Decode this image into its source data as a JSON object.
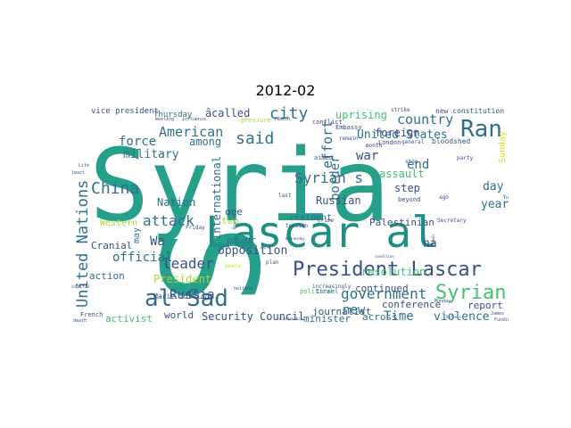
{
  "title": "2012-02",
  "palette": {
    "teal": "#26a08a",
    "teal_dark": "#1f8f84",
    "blue": "#2f6f8e",
    "navy": "#3a4f8a",
    "purple": "#482878",
    "green": "#43bf71",
    "lime": "#a5db36",
    "yellow": "#d8e219"
  },
  "words": [
    {
      "text": "Syria",
      "color": "teal"
    },
    {
      "text": "S",
      "color": "teal"
    },
    {
      "text": "Lascar al",
      "color": "teal_dark"
    },
    {
      "text": "President Lascar",
      "color": "navy"
    },
    {
      "text": "al Sad",
      "color": "blue"
    },
    {
      "text": "Ran",
      "color": "blue"
    },
    {
      "text": "Syrian",
      "color": "green"
    },
    {
      "text": "United Nations",
      "color": "blue"
    },
    {
      "text": "China",
      "color": "blue"
    },
    {
      "text": "said",
      "color": "blue"
    },
    {
      "text": "city",
      "color": "blue"
    },
    {
      "text": "Syrian s",
      "color": "blue"
    },
    {
      "text": "country",
      "color": "blue"
    },
    {
      "text": "government",
      "color": "blue"
    },
    {
      "text": "American",
      "color": "blue"
    },
    {
      "text": "leader",
      "color": "navy"
    },
    {
      "text": "Russia",
      "color": "navy"
    },
    {
      "text": "attack",
      "color": "blue"
    },
    {
      "text": "force",
      "color": "blue"
    },
    {
      "text": "Wa",
      "color": "navy"
    },
    {
      "text": "United States",
      "color": "blue"
    },
    {
      "text": "effort",
      "color": "blue"
    },
    {
      "text": "border",
      "color": "blue"
    },
    {
      "text": "international",
      "color": "blue"
    },
    {
      "text": "opposition",
      "color": "navy"
    },
    {
      "text": "Security Council",
      "color": "navy"
    },
    {
      "text": "Time",
      "color": "blue"
    },
    {
      "text": "violence",
      "color": "blue"
    },
    {
      "text": "new",
      "color": "blue"
    },
    {
      "text": "official",
      "color": "blue"
    },
    {
      "text": "military",
      "color": "blue"
    },
    {
      "text": "Nation",
      "color": "blue"
    },
    {
      "text": "among",
      "color": "blue"
    },
    {
      "text": "called",
      "color": "navy"
    },
    {
      "text": "uprising",
      "color": "green"
    },
    {
      "text": "war",
      "color": "navy"
    },
    {
      "text": "end",
      "color": "blue"
    },
    {
      "text": "year",
      "color": "blue"
    },
    {
      "text": "day",
      "color": "blue"
    },
    {
      "text": "step",
      "color": "navy"
    },
    {
      "text": "foreign",
      "color": "navy"
    },
    {
      "text": "assault",
      "color": "green"
    },
    {
      "text": "Sunday",
      "color": "yellow"
    },
    {
      "text": "Russian",
      "color": "navy"
    },
    {
      "text": "resolution",
      "color": "green"
    },
    {
      "text": "Palestinian",
      "color": "navy"
    },
    {
      "text": "continued",
      "color": "navy"
    },
    {
      "text": "journalist",
      "color": "navy"
    },
    {
      "text": "conference",
      "color": "navy"
    },
    {
      "text": "report",
      "color": "navy"
    },
    {
      "text": "across",
      "color": "blue"
    },
    {
      "text": "minister",
      "color": "blue"
    },
    {
      "text": "world",
      "color": "navy"
    },
    {
      "text": "activist",
      "color": "green"
    },
    {
      "text": "President",
      "color": "lime"
    },
    {
      "text": "action",
      "color": "blue"
    },
    {
      "text": "Marie Solving",
      "color": "navy"
    },
    {
      "text": "Cranial",
      "color": "navy"
    },
    {
      "text": "power",
      "color": "blue"
    },
    {
      "text": "one",
      "color": "navy"
    },
    {
      "text": "two",
      "color": "lime"
    },
    {
      "text": "Western",
      "color": "lime"
    },
    {
      "text": "resident",
      "color": "blue"
    },
    {
      "text": "Thursday",
      "color": "blue"
    },
    {
      "text": "vice president",
      "color": "navy"
    },
    {
      "text": "ha",
      "color": "navy"
    },
    {
      "text": "may",
      "color": "blue"
    },
    {
      "text": "â",
      "color": "navy"
    },
    {
      "text": "new constitution",
      "color": "navy"
    },
    {
      "text": "bloodshed",
      "color": "navy"
    },
    {
      "text": "London",
      "color": "navy"
    },
    {
      "text": "Embassy",
      "color": "navy"
    },
    {
      "text": "aimed",
      "color": "navy"
    },
    {
      "text": "beyond",
      "color": "navy"
    },
    {
      "text": "Secretary",
      "color": "navy"
    },
    {
      "text": "increasingly",
      "color": "navy"
    },
    {
      "text": "tension",
      "color": "navy"
    },
    {
      "text": "political",
      "color": "green"
    },
    {
      "text": "Israel",
      "color": "blue"
    },
    {
      "text": "French",
      "color": "navy"
    },
    {
      "text": "Friday",
      "color": "navy"
    },
    {
      "text": "last",
      "color": "navy"
    },
    {
      "text": "plan",
      "color": "navy"
    },
    {
      "text": "pressure",
      "color": "lime"
    },
    {
      "text": "conflict",
      "color": "navy"
    },
    {
      "text": "strike",
      "color": "navy"
    },
    {
      "text": "general",
      "color": "navy"
    },
    {
      "text": "Tunisia",
      "color": "navy"
    },
    {
      "text": "ago",
      "color": "navy"
    },
    {
      "text": "month",
      "color": "purple"
    },
    {
      "text": "crime",
      "color": "navy"
    },
    {
      "text": "remain",
      "color": "navy"
    },
    {
      "text": "stop",
      "color": "navy"
    },
    {
      "text": "Monday",
      "color": "navy"
    },
    {
      "text": "James",
      "color": "navy"
    },
    {
      "text": "Funding",
      "color": "navy"
    },
    {
      "text": "party",
      "color": "navy"
    },
    {
      "text": "capital",
      "color": "navy"
    },
    {
      "text": "death",
      "color": "navy"
    },
    {
      "text": "Life",
      "color": "navy"
    },
    {
      "text": "least",
      "color": "navy"
    },
    {
      "text": "peace",
      "color": "yellow"
    },
    {
      "text": "reach",
      "color": "navy"
    },
    {
      "text": "meeting",
      "color": "navy"
    },
    {
      "text": "influence",
      "color": "navy"
    },
    {
      "text": "holland",
      "color": "navy"
    },
    {
      "text": "Wednesday",
      "color": "navy"
    },
    {
      "text": "Assadi",
      "color": "navy"
    },
    {
      "text": "Despite",
      "color": "navy"
    },
    {
      "text": "condition",
      "color": "navy"
    },
    {
      "text": "relationship",
      "color": "navy"
    },
    {
      "text": "Defense",
      "color": "navy"
    }
  ]
}
